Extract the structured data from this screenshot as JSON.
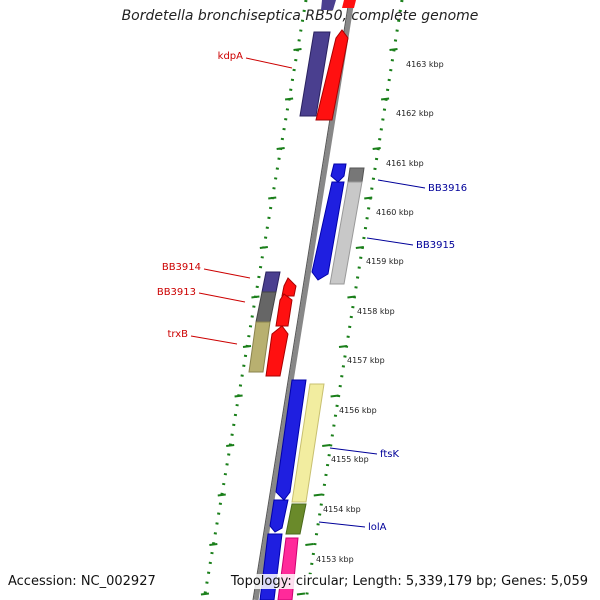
{
  "title": "Bordetella bronchiseptica RB50, complete genome",
  "accession_text": "Accession: NC_002927",
  "summary_text": "Topology: circular; Length: 5,339,179 bp; Genes: 5,059",
  "colors": {
    "backbone": "#888888",
    "ruler_dots": "#1a7f1a",
    "label_forward": "#cc0000",
    "label_reverse": "#000099"
  },
  "scale_labels": [
    "4163 kbp",
    "4162 kbp",
    "4161 kbp",
    "4160 kbp",
    "4159 kbp",
    "4158 kbp",
    "4157 kbp",
    "4156 kbp",
    "4155 kbp",
    "4154 kbp",
    "4153 kbp"
  ],
  "labels_left": [
    {
      "text": "kdpA"
    },
    {
      "text": "BB3914"
    },
    {
      "text": "BB3913"
    },
    {
      "text": "trxB"
    }
  ],
  "labels_right": [
    {
      "text": "BB3916"
    },
    {
      "text": "BB3915"
    },
    {
      "text": "ftsK"
    },
    {
      "text": "lolA"
    }
  ]
}
